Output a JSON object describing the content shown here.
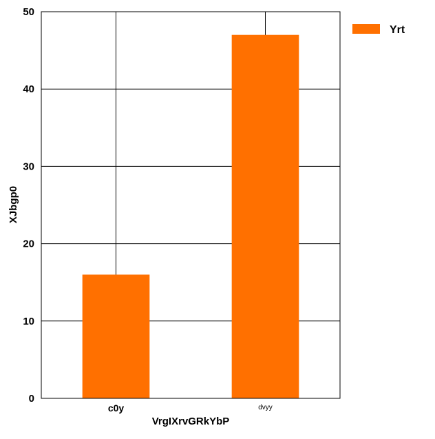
{
  "chart_data": {
    "type": "bar",
    "categories": [
      "c0y",
      "dvyy"
    ],
    "series": [
      {
        "name": "Yrt",
        "values": [
          16,
          47
        ],
        "color": "#ff7000"
      }
    ],
    "xlabel": "VrgIXrvGRkYbP",
    "ylabel": "XJbgp0",
    "ylim": [
      0,
      50
    ],
    "yticks": [
      0,
      10,
      20,
      30,
      40,
      50
    ],
    "grid": true,
    "legend_position": "top-right",
    "category_label_styles": [
      "bold",
      "small-normal"
    ]
  }
}
